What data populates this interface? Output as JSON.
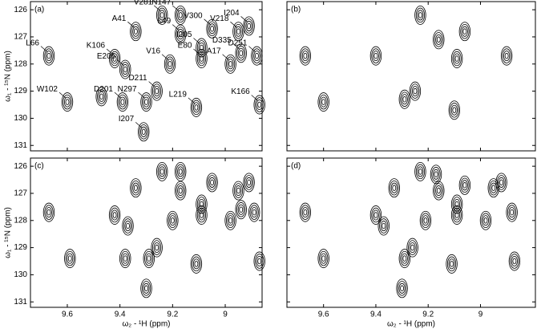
{
  "chart_data": [
    {
      "type": "contour",
      "panel_label": "(a)",
      "ylabel": "ω₁ - ¹⁵N (ppm)",
      "color": "#000000",
      "xlim": [
        9.74,
        8.86
      ],
      "ylim": [
        125.7,
        131.2
      ],
      "xticks": [
        9.6,
        9.4,
        9.2,
        9.0
      ],
      "yticks": [
        126,
        127,
        128,
        129,
        130,
        131
      ],
      "show_xtick_labels": false,
      "show_ytick_labels": true,
      "peaks": {
        "x": [
          9.67,
          9.6,
          9.42,
          9.34,
          9.38,
          9.39,
          9.3,
          9.26,
          9.31,
          9.24,
          9.17,
          9.17,
          9.21,
          9.09,
          9.09,
          9.11,
          9.05,
          8.95,
          8.91,
          8.98,
          8.94,
          8.88,
          8.87,
          9.47
        ],
        "y": [
          127.7,
          129.4,
          127.8,
          126.8,
          128.2,
          129.4,
          129.4,
          129.0,
          130.5,
          126.2,
          126.9,
          126.2,
          128.0,
          127.4,
          127.8,
          129.6,
          126.7,
          126.8,
          126.6,
          128.0,
          127.6,
          127.7,
          129.5,
          129.2
        ],
        "labels": [
          "L66",
          "W102",
          "K106",
          "A41",
          "E206",
          "D201",
          "N297",
          "D211",
          "I207",
          "V281",
          "L49",
          "N147",
          "V16",
          "I205",
          "E80",
          "L219",
          "V300",
          "V218",
          "I204",
          "A17",
          "D335",
          "D251",
          "K166",
          null
        ]
      }
    },
    {
      "type": "contour",
      "panel_label": "(b)",
      "color": "#000000",
      "xlim": [
        9.74,
        8.79
      ],
      "ylim": [
        125.7,
        131.2
      ],
      "xticks": [
        9.6,
        9.4,
        9.2,
        9.0
      ],
      "yticks": [
        126,
        127,
        128,
        129,
        130,
        131
      ],
      "show_xtick_labels": false,
      "show_ytick_labels": false,
      "peaks": {
        "x": [
          9.67,
          9.4,
          9.23,
          9.16,
          9.09,
          9.06,
          8.9,
          9.6,
          9.25,
          9.29,
          9.1
        ],
        "y": [
          127.7,
          127.7,
          126.2,
          127.1,
          127.8,
          126.8,
          127.7,
          129.4,
          129.0,
          129.3,
          129.7
        ]
      }
    },
    {
      "type": "contour",
      "panel_label": "(c)",
      "ylabel": "ω₁ - ¹⁵N (ppm)",
      "xlabel": "ω₂ - ¹H (ppm)",
      "color": "#000000",
      "xlim": [
        9.74,
        8.86
      ],
      "ylim": [
        125.7,
        131.2
      ],
      "xticks": [
        9.6,
        9.4,
        9.2,
        9.0
      ],
      "yticks": [
        126,
        127,
        128,
        129,
        130,
        131
      ],
      "show_xtick_labels": true,
      "show_ytick_labels": true,
      "peaks": {
        "x": [
          9.67,
          9.59,
          9.42,
          9.34,
          9.37,
          9.38,
          9.29,
          9.26,
          9.3,
          9.24,
          9.17,
          9.17,
          9.2,
          9.09,
          9.09,
          9.11,
          9.05,
          8.95,
          8.91,
          8.98,
          8.94,
          8.89,
          8.87
        ],
        "y": [
          127.7,
          129.4,
          127.8,
          126.8,
          128.2,
          129.4,
          129.4,
          129.0,
          130.5,
          126.2,
          126.9,
          126.2,
          128.0,
          127.4,
          127.8,
          129.6,
          126.6,
          126.9,
          126.6,
          128.0,
          127.6,
          127.7,
          129.5
        ]
      }
    },
    {
      "type": "contour",
      "panel_label": "(d)",
      "xlabel": "ω₂ - ¹H (ppm)",
      "color": "#000000",
      "xlim": [
        9.74,
        8.79
      ],
      "ylim": [
        125.7,
        131.2
      ],
      "xticks": [
        9.6,
        9.4,
        9.2,
        9.0
      ],
      "yticks": [
        126,
        127,
        128,
        129,
        130,
        131
      ],
      "show_xtick_labels": true,
      "show_ytick_labels": false,
      "peaks": {
        "x": [
          9.67,
          9.6,
          9.4,
          9.33,
          9.37,
          9.29,
          9.26,
          9.3,
          9.23,
          9.16,
          9.17,
          9.21,
          9.09,
          9.09,
          9.11,
          9.06,
          8.95,
          8.92,
          8.98,
          8.88,
          8.87
        ],
        "y": [
          127.7,
          129.4,
          127.8,
          126.8,
          128.2,
          129.4,
          129.0,
          130.5,
          126.2,
          126.9,
          126.3,
          128.0,
          127.4,
          127.8,
          129.6,
          126.7,
          126.8,
          126.6,
          128.0,
          127.7,
          129.5
        ]
      }
    }
  ]
}
